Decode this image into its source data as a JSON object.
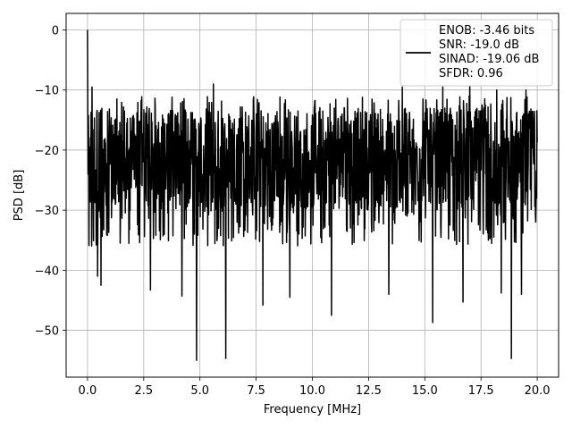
{
  "chart_data": {
    "type": "line",
    "title": "",
    "xlabel": "Frequency [MHz]",
    "ylabel": "PSD [dB]",
    "xlim": [
      -0.95,
      20.95
    ],
    "ylim": [
      -57.8,
      2.75
    ],
    "xticks": [
      0.0,
      2.5,
      5.0,
      7.5,
      10.0,
      12.5,
      15.0,
      17.5,
      20.0
    ],
    "xtick_labels": [
      "0.0",
      "2.5",
      "5.0",
      "7.5",
      "10.0",
      "12.5",
      "15.0",
      "17.5",
      "20.0"
    ],
    "yticks": [
      0,
      -10,
      -20,
      -30,
      -40,
      -50
    ],
    "ytick_labels": [
      "0",
      "−10",
      "−20",
      "−30",
      "−40",
      "−50"
    ],
    "grid": true,
    "legend": {
      "placement": "top-right",
      "entries": [
        "ENOB: -3.46 bits",
        "SNR: -19.0 dB",
        "SINAD: -19.06 dB",
        "SFDR: 0.96"
      ]
    },
    "series": [
      {
        "color": "#000000",
        "x_start": 0.0,
        "x_end": 20.0,
        "noise_floor_mean": -21,
        "noise_band": [
          -30,
          -13
        ],
        "peak": {
          "x": 0.0,
          "y": 0.0
        },
        "dips": [
          {
            "x": 0.45,
            "y": -41
          },
          {
            "x": 0.6,
            "y": -42.5
          },
          {
            "x": 2.8,
            "y": -43.3
          },
          {
            "x": 4.2,
            "y": -44.3
          },
          {
            "x": 4.85,
            "y": -55.0
          },
          {
            "x": 6.15,
            "y": -54.7
          },
          {
            "x": 7.8,
            "y": -45.8
          },
          {
            "x": 9.0,
            "y": -44.5
          },
          {
            "x": 10.85,
            "y": -47.5
          },
          {
            "x": 13.4,
            "y": -44.0
          },
          {
            "x": 15.35,
            "y": -48.7
          },
          {
            "x": 16.7,
            "y": -45.3
          },
          {
            "x": 18.4,
            "y": -43.8
          },
          {
            "x": 18.85,
            "y": -54.7
          },
          {
            "x": 19.3,
            "y": -44.0
          }
        ],
        "spikes": [
          {
            "x": 5.6,
            "y": -9.0
          },
          {
            "x": 14.0,
            "y": -9.5
          },
          {
            "x": 15.8,
            "y": -9.5
          },
          {
            "x": 17.0,
            "y": -9.3
          },
          {
            "x": 18.2,
            "y": -10.0
          },
          {
            "x": 19.5,
            "y": -10.0
          },
          {
            "x": 0.2,
            "y": -9.5
          }
        ]
      }
    ]
  }
}
